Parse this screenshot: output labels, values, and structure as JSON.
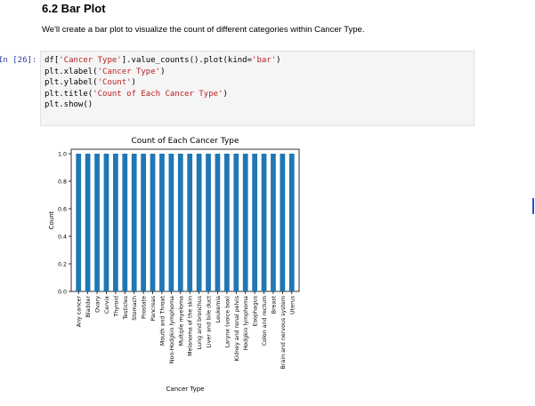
{
  "heading": "6.2 Bar Plot",
  "description": "We'll create a bar plot to visualize the count of different categories within Cancer Type.",
  "cell": {
    "prompt": "In [26]:",
    "lines": [
      [
        {
          "t": "df[",
          "c": "p"
        },
        {
          "t": "'Cancer Type'",
          "c": "s"
        },
        {
          "t": "].value_counts().plot(kind=",
          "c": "p"
        },
        {
          "t": "'bar'",
          "c": "s"
        },
        {
          "t": ")",
          "c": "p"
        }
      ],
      [
        {
          "t": "plt.xlabel(",
          "c": "p"
        },
        {
          "t": "'Cancer Type'",
          "c": "s"
        },
        {
          "t": ")",
          "c": "p"
        }
      ],
      [
        {
          "t": "plt.ylabel(",
          "c": "p"
        },
        {
          "t": "'Count'",
          "c": "s"
        },
        {
          "t": ")",
          "c": "p"
        }
      ],
      [
        {
          "t": "plt.title(",
          "c": "p"
        },
        {
          "t": "'Count of Each Cancer Type'",
          "c": "s"
        },
        {
          "t": ")",
          "c": "p"
        }
      ],
      [
        {
          "t": "plt.show()",
          "c": "p"
        }
      ]
    ]
  },
  "chart_data": {
    "type": "bar",
    "title": "Count of Each Cancer Type",
    "xlabel": "Cancer Type",
    "ylabel": "Count",
    "ylim": [
      0,
      1.0
    ],
    "yticks": [
      "0.0",
      "0.2",
      "0.4",
      "0.6",
      "0.8",
      "1.0"
    ],
    "bar_color": "#1f77b4",
    "categories": [
      "Any cancer",
      "Bladder",
      "Ovary",
      "Cervix",
      "Thyroid",
      "Testicles",
      "Stomach",
      "Prostate",
      "Pancreas",
      "Mouth and Throat",
      "Non-Hodgkin lymphoma",
      "Multiple myeloma",
      "Melanoma of the skin",
      "Lung and bronchus",
      "Liver and bile duct",
      "Leukemia",
      "Larynx (voice box)",
      "Kidney and renal pelvis",
      "Hodgkin lymphoma",
      "Esophagus",
      "Colon and rectum",
      "Breast",
      "Brain and nervous system",
      "Uterus"
    ],
    "values": [
      1,
      1,
      1,
      1,
      1,
      1,
      1,
      1,
      1,
      1,
      1,
      1,
      1,
      1,
      1,
      1,
      1,
      1,
      1,
      1,
      1,
      1,
      1,
      1
    ]
  }
}
